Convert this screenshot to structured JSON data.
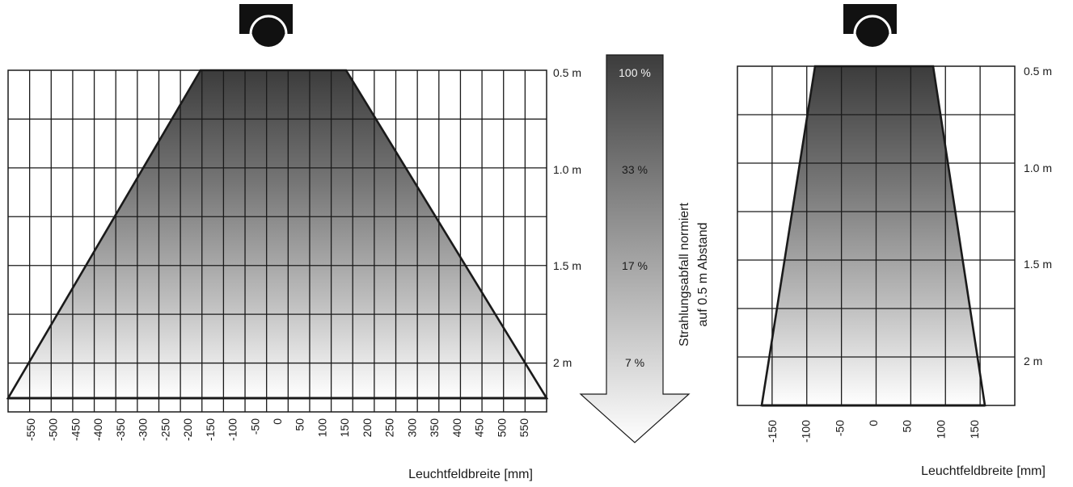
{
  "left_diagram": {
    "distance_labels": [
      "0.5 m",
      "1.0 m",
      "1.5 m",
      "2 m"
    ],
    "x_ticks": [
      "-550",
      "-500",
      "-450",
      "-400",
      "-350",
      "-300",
      "-250",
      "-200",
      "-150",
      "-100",
      "-50",
      "0",
      "50",
      "100",
      "150",
      "200",
      "250",
      "300",
      "350",
      "400",
      "450",
      "500",
      "550"
    ],
    "axis_title": "Leuchtfeldbreite [mm]"
  },
  "intensity_arrow": {
    "percent_labels": [
      "100 %",
      "33 %",
      "17 %",
      "7 %"
    ],
    "caption_line1": "Strahlungsabfall normiert",
    "caption_line2": "auf 0.5 m Abstand"
  },
  "right_diagram": {
    "distance_labels": [
      "0.5 m",
      "1.0 m",
      "1.5 m",
      "2 m"
    ],
    "x_ticks": [
      "-150",
      "-100",
      "-50",
      "0",
      "50",
      "100",
      "150"
    ],
    "axis_title": "Leuchtfeldbreite [mm]"
  },
  "icons": [
    "camera-icon",
    "camera-icon"
  ]
}
